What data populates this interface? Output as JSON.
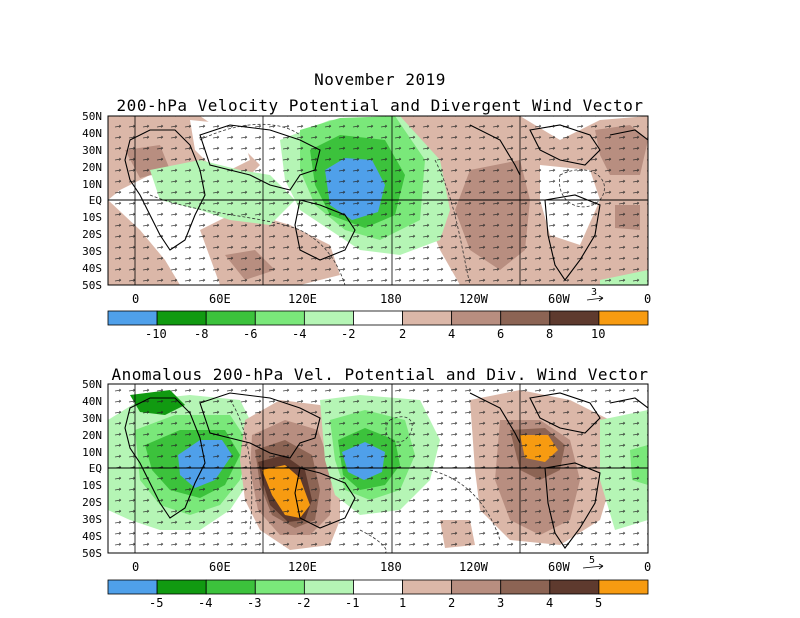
{
  "header": {
    "title": "November 2019"
  },
  "panels": [
    {
      "title": "200-hPa Velocity Potential and Divergent Wind Vector",
      "lat_labels": [
        "50N",
        "40N",
        "30N",
        "20N",
        "10N",
        "EQ",
        "10S",
        "20S",
        "30S",
        "40S",
        "50S"
      ],
      "lon_labels": [
        "0",
        "60E",
        "120E",
        "180",
        "120W",
        "60W",
        "0"
      ],
      "vector_ref": "3",
      "colorbar": {
        "colors": [
          "#4fa0ea",
          "#119a11",
          "#3cc23c",
          "#7ae87a",
          "#b5f5b5",
          "#ffffff",
          "#dbb7a8",
          "#b88e80",
          "#8c6454",
          "#5e3a2e",
          "#f79b11"
        ],
        "labels": [
          "-10",
          "-8",
          "-6",
          "-4",
          "-2",
          "2",
          "4",
          "6",
          "8",
          "10"
        ]
      }
    },
    {
      "title": "Anomalous 200-hPa Vel. Potential and Div. Wind Vector",
      "lat_labels": [
        "50N",
        "40N",
        "30N",
        "20N",
        "10N",
        "EQ",
        "10S",
        "20S",
        "30S",
        "40S",
        "50S"
      ],
      "lon_labels": [
        "0",
        "60E",
        "120E",
        "180",
        "120W",
        "60W",
        "0"
      ],
      "vector_ref": "5",
      "colorbar": {
        "colors": [
          "#4fa0ea",
          "#119a11",
          "#3cc23c",
          "#7ae87a",
          "#b5f5b5",
          "#ffffff",
          "#dbb7a8",
          "#b88e80",
          "#8c6454",
          "#5e3a2e",
          "#f79b11"
        ],
        "labels": [
          "-5",
          "-4",
          "-3",
          "-2",
          "-1",
          "1",
          "2",
          "3",
          "4",
          "5"
        ]
      }
    }
  ]
}
